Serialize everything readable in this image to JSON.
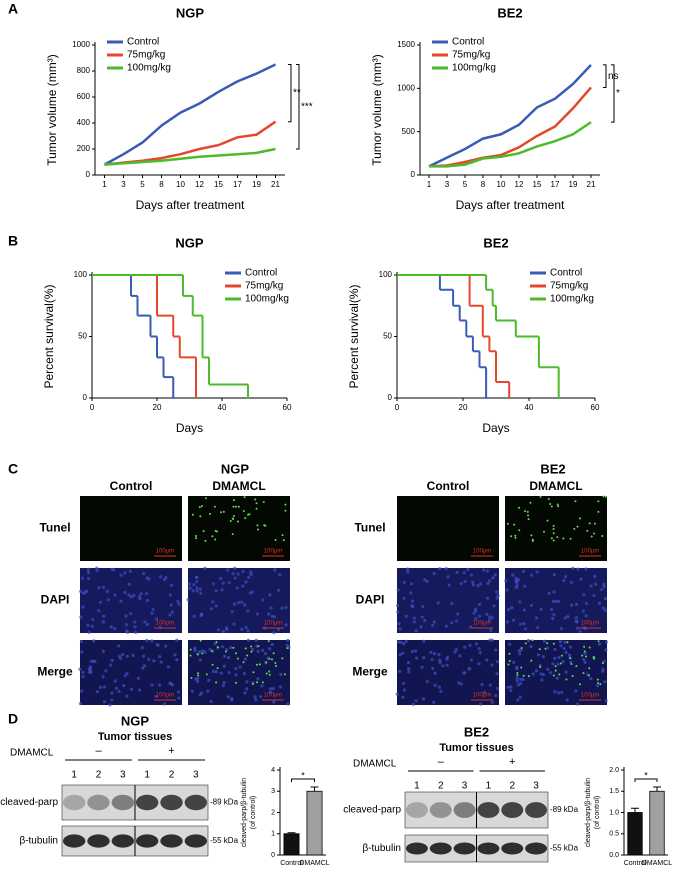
{
  "chart_data": [
    {
      "type": "line",
      "title": "NGP",
      "x_label": "Days after treatment",
      "y_label": "Tumor volume (mm³)",
      "categories": [
        "1",
        "3",
        "5",
        "8",
        "10",
        "12",
        "15",
        "17",
        "19",
        "21"
      ],
      "ylim": [
        0,
        1000
      ],
      "yticks": [
        0,
        200,
        400,
        600,
        800,
        1000
      ],
      "series": [
        {
          "name": "Control",
          "color": "#3a5bb5",
          "values": [
            80,
            160,
            250,
            380,
            480,
            550,
            640,
            720,
            780,
            850
          ]
        },
        {
          "name": "75mg/kg",
          "color": "#e5472d",
          "values": [
            80,
            95,
            110,
            130,
            160,
            200,
            230,
            290,
            310,
            410
          ]
        },
        {
          "name": "100mg/kg",
          "color": "#4cbb2a",
          "values": [
            80,
            90,
            100,
            110,
            125,
            140,
            150,
            160,
            170,
            200
          ]
        }
      ],
      "annotations": [
        "**",
        "***"
      ]
    },
    {
      "type": "line",
      "title": "BE2",
      "x_label": "Days after treatment",
      "y_label": "Tumor volume (mm³)",
      "categories": [
        "1",
        "3",
        "5",
        "8",
        "10",
        "12",
        "15",
        "17",
        "19",
        "21"
      ],
      "ylim": [
        0,
        1500
      ],
      "yticks": [
        0,
        500,
        1000,
        1500
      ],
      "series": [
        {
          "name": "Control",
          "color": "#3a5bb5",
          "values": [
            100,
            200,
            300,
            420,
            470,
            580,
            780,
            880,
            1050,
            1270
          ]
        },
        {
          "name": "75mg/kg",
          "color": "#e5472d",
          "values": [
            100,
            110,
            150,
            200,
            230,
            320,
            450,
            560,
            770,
            1010
          ]
        },
        {
          "name": "100mg/kg",
          "color": "#4cbb2a",
          "values": [
            100,
            100,
            120,
            190,
            210,
            250,
            330,
            390,
            470,
            610
          ]
        }
      ],
      "annotations": [
        "ns",
        "*"
      ]
    },
    {
      "type": "step",
      "title": "NGP",
      "x_label": "Days",
      "y_label": "Percent survival(%)",
      "xlim": [
        0,
        60
      ],
      "xticks": [
        0,
        20,
        40,
        60
      ],
      "ylim": [
        0,
        100
      ],
      "yticks": [
        0,
        50,
        100
      ],
      "series": [
        {
          "name": "Control",
          "color": "#3a5bb5",
          "x": [
            0,
            12,
            14,
            18,
            20,
            22,
            25
          ],
          "values": [
            100,
            83,
            67,
            50,
            33,
            17,
            0
          ]
        },
        {
          "name": "75mg/kg",
          "color": "#e5472d",
          "x": [
            0,
            20,
            25,
            27,
            32
          ],
          "values": [
            100,
            67,
            50,
            33,
            0
          ]
        },
        {
          "name": "100mg/kg",
          "color": "#4cbb2a",
          "x": [
            0,
            28,
            31,
            34,
            36,
            48
          ],
          "values": [
            100,
            83,
            67,
            33,
            11,
            0
          ]
        }
      ]
    },
    {
      "type": "step",
      "title": "BE2",
      "x_label": "Days",
      "y_label": "Percent survival(%)",
      "xlim": [
        0,
        60
      ],
      "xticks": [
        0,
        20,
        40,
        60
      ],
      "ylim": [
        0,
        100
      ],
      "yticks": [
        0,
        50,
        100
      ],
      "series": [
        {
          "name": "Control",
          "color": "#3a5bb5",
          "x": [
            0,
            13,
            17,
            19,
            21,
            23,
            25,
            27
          ],
          "values": [
            100,
            88,
            75,
            63,
            50,
            38,
            25,
            0
          ]
        },
        {
          "name": "75mg/kg",
          "color": "#e5472d",
          "x": [
            0,
            22,
            26,
            28,
            30,
            34
          ],
          "values": [
            100,
            75,
            50,
            38,
            13,
            0
          ]
        },
        {
          "name": "100mg/kg",
          "color": "#4cbb2a",
          "x": [
            0,
            27,
            29,
            30,
            36,
            43,
            49
          ],
          "values": [
            100,
            88,
            75,
            63,
            50,
            25,
            0
          ]
        }
      ]
    },
    {
      "type": "bar",
      "y_label": [
        "cleaved-parp/β-tubulin",
        "(of control)"
      ],
      "categories": [
        "Control",
        "DMAMCL"
      ],
      "values": [
        1.0,
        3.0
      ],
      "errors": [
        0.05,
        0.2
      ],
      "colors": [
        "#111111",
        "#a0a0a0"
      ],
      "ylim": [
        0,
        4
      ],
      "yticks": [
        0,
        1,
        2,
        3,
        4
      ],
      "annotations": [
        "*"
      ]
    },
    {
      "type": "bar",
      "y_label": [
        "cleaved-parp/β-tubulin",
        "(of control)"
      ],
      "categories": [
        "Control",
        "DMAMCL"
      ],
      "values": [
        1.0,
        1.5
      ],
      "errors": [
        0.1,
        0.1
      ],
      "colors": [
        "#111111",
        "#a0a0a0"
      ],
      "ylim": [
        0,
        2
      ],
      "yticks": [
        {
          "value": 0,
          "label": "0.0"
        },
        {
          "value": 0.5,
          "label": "0.5"
        },
        {
          "value": 1,
          "label": "1.0"
        },
        {
          "value": 1.5,
          "label": "1.5"
        },
        {
          "value": 2,
          "label": "2.0"
        }
      ],
      "annotations": [
        "*"
      ]
    }
  ],
  "panels": {
    "letters": [
      "A",
      "B",
      "C",
      "D"
    ],
    "tunel": [
      {
        "title": "NGP",
        "columns": [
          "Control",
          "DMAMCL"
        ],
        "rows": [
          "Tunel",
          "DAPI",
          "Merge"
        ],
        "scale_bar": "100μm"
      },
      {
        "title": "BE2",
        "columns": [
          "Control",
          "DMAMCL"
        ],
        "rows": [
          "Tunel",
          "DAPI",
          "Merge"
        ],
        "scale_bar": "100μm"
      }
    ],
    "western": [
      {
        "title": "NGP",
        "subtitle": "Tumor tissues",
        "treatment": "DMAMCL",
        "groups": [
          "–",
          "+"
        ],
        "lanes": [
          "1",
          "2",
          "3",
          "1",
          "2",
          "3"
        ],
        "bands": [
          {
            "name": "cleaved-parp",
            "size": "-89 kDa"
          },
          {
            "name": "β-tubulin",
            "size": "-55 kDa"
          }
        ]
      },
      {
        "title": "BE2",
        "subtitle": "Tumor tissues",
        "treatment": "DMAMCL",
        "groups": [
          "–",
          "+"
        ],
        "lanes": [
          "1",
          "2",
          "3",
          "1",
          "2",
          "3"
        ],
        "bands": [
          {
            "name": "cleaved-parp",
            "size": "-89 kDa"
          },
          {
            "name": "β-tubulin",
            "size": "-55 kDa"
          }
        ]
      }
    ]
  }
}
